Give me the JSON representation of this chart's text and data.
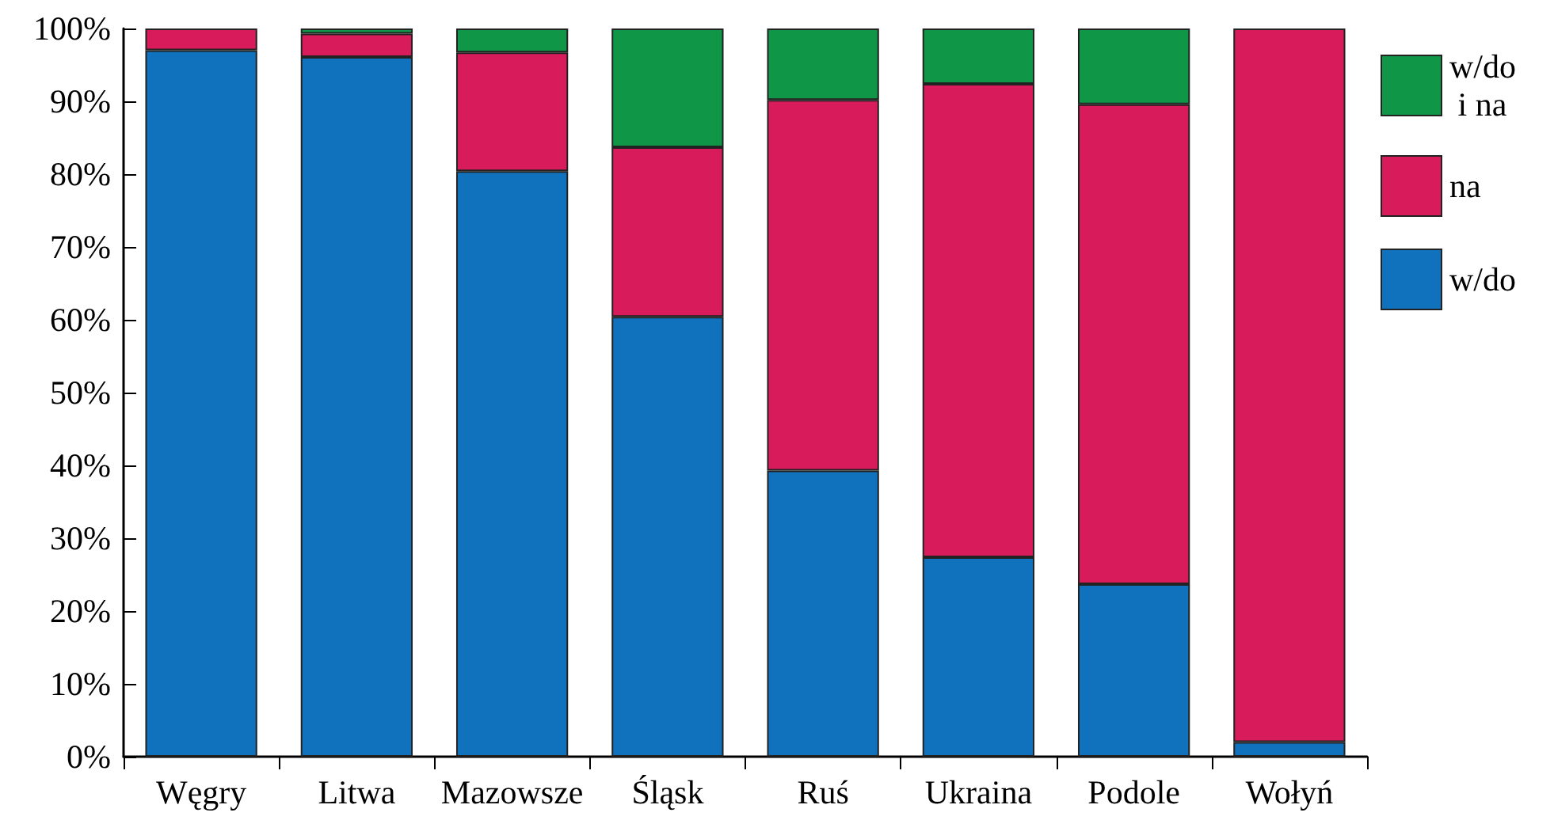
{
  "chart_data": {
    "type": "bar",
    "stacked": true,
    "categories": [
      "Węgry",
      "Litwa",
      "Mazowsze",
      "Śląsk",
      "Ruś",
      "Ukraina",
      "Podole",
      "Wołyń"
    ],
    "series": [
      {
        "name": "w/do",
        "color": "#1071bc",
        "values": [
          97,
          96.1,
          80.4,
          60.4,
          39.3,
          27.4,
          23.7,
          2
        ]
      },
      {
        "name": "na",
        "color": "#d81b5b",
        "values": [
          3,
          3.2,
          16.3,
          23.3,
          50.9,
          65,
          65.9,
          98
        ]
      },
      {
        "name": "w/do i na",
        "color": "#0f9647",
        "values": [
          null,
          0.7,
          3.3,
          16.3,
          9.8,
          7.6,
          10.4,
          null
        ]
      }
    ],
    "ylim": [
      0,
      100
    ],
    "yticks": [
      {
        "value": 0,
        "label": "0%"
      },
      {
        "value": 10,
        "label": "10%"
      },
      {
        "value": 20,
        "label": "20%"
      },
      {
        "value": 30,
        "label": "30%"
      },
      {
        "value": 40,
        "label": "40%"
      },
      {
        "value": 50,
        "label": "50%"
      },
      {
        "value": 60,
        "label": "60%"
      },
      {
        "value": 70,
        "label": "70%"
      },
      {
        "value": 80,
        "label": "80%"
      },
      {
        "value": 90,
        "label": "90%"
      },
      {
        "value": 100,
        "label": "100%"
      }
    ],
    "grid": false,
    "legend": "top right"
  }
}
